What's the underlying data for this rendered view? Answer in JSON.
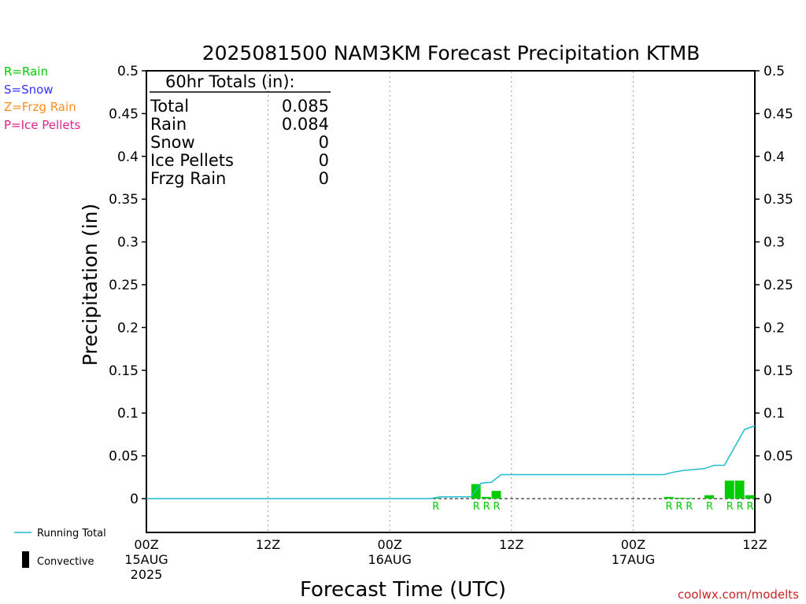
{
  "colors": {
    "rain": "#00cc00",
    "snow": "#3333ff",
    "frzg_rain": "#ff8c1a",
    "ice_pellets": "#e0228f",
    "running_total": "#22bbcc",
    "convective": "#000000",
    "credit": "#cc2222"
  },
  "legend_types": [
    {
      "label": "R=Rain",
      "color_key": "rain"
    },
    {
      "label": "S=Snow",
      "color_key": "snow"
    },
    {
      "label": "Z=Frzg Rain",
      "color_key": "frzg_rain"
    },
    {
      "label": "P=Ice Pellets",
      "color_key": "ice_pellets"
    }
  ],
  "legend_bottom": {
    "running_total": "Running Total",
    "convective": "Convective"
  },
  "totals_box": {
    "header": "60hr Totals (in):",
    "rows": [
      {
        "label": "Total",
        "value": "0.085"
      },
      {
        "label": "Rain",
        "value": "0.084"
      },
      {
        "label": "Snow",
        "value": "0"
      },
      {
        "label": "Ice Pellets",
        "value": "0"
      },
      {
        "label": "Frzg Rain",
        "value": "0"
      }
    ]
  },
  "credit": "coolwx.com/modelts",
  "chart_data": {
    "type": "bar",
    "title": "2025081500 NAM3KM Forecast Precipitation KTMB",
    "xlabel": "Forecast Time (UTC)",
    "ylabel": "Precipitation (in)",
    "xlim": [
      0,
      60
    ],
    "ylim": [
      -0.04,
      0.5
    ],
    "y_ticks": [
      0,
      0.05,
      0.1,
      0.15,
      0.2,
      0.25,
      0.3,
      0.35,
      0.4,
      0.45,
      0.5
    ],
    "y_tick_labels": [
      "0",
      "0.05",
      "0.1",
      "0.15",
      "0.2",
      "0.25",
      "0.3",
      "0.35",
      "0.4",
      "0.45",
      "0.5"
    ],
    "x_ticks": [
      {
        "hour": 0,
        "lines": [
          "00Z",
          "15AUG",
          "2025"
        ]
      },
      {
        "hour": 12,
        "lines": [
          "12Z"
        ]
      },
      {
        "hour": 24,
        "lines": [
          "00Z",
          "16AUG"
        ]
      },
      {
        "hour": 36,
        "lines": [
          "12Z"
        ]
      },
      {
        "hour": 48,
        "lines": [
          "00Z",
          "17AUG"
        ]
      },
      {
        "hour": 60,
        "lines": [
          "12Z"
        ]
      }
    ],
    "grid": "vertical dotted",
    "bar_width_hours": 1,
    "series": [
      {
        "name": "Rain",
        "kind": "bar",
        "color_key": "rain",
        "points": [
          {
            "hour": 29,
            "value": 0.0005,
            "code": "R"
          },
          {
            "hour": 33,
            "value": 0.017,
            "code": "R"
          },
          {
            "hour": 34,
            "value": 0.002,
            "code": "R"
          },
          {
            "hour": 35,
            "value": 0.009,
            "code": "R"
          },
          {
            "hour": 52,
            "value": 0.002,
            "code": "R"
          },
          {
            "hour": 53,
            "value": 0.001,
            "code": "R"
          },
          {
            "hour": 54,
            "value": 0.0005,
            "code": "R"
          },
          {
            "hour": 56,
            "value": 0.004,
            "code": "R"
          },
          {
            "hour": 58,
            "value": 0.021,
            "code": "R"
          },
          {
            "hour": 59,
            "value": 0.021,
            "code": "R"
          },
          {
            "hour": 60,
            "value": 0.004,
            "code": "R"
          }
        ]
      },
      {
        "name": "Running Total",
        "kind": "line",
        "color_key": "running_total",
        "points": [
          {
            "hour": 0,
            "value": 0
          },
          {
            "hour": 28,
            "value": 0
          },
          {
            "hour": 29,
            "value": 0.002
          },
          {
            "hour": 32,
            "value": 0.002
          },
          {
            "hour": 33,
            "value": 0.018
          },
          {
            "hour": 34,
            "value": 0.019
          },
          {
            "hour": 35,
            "value": 0.028
          },
          {
            "hour": 51,
            "value": 0.028
          },
          {
            "hour": 52,
            "value": 0.031
          },
          {
            "hour": 53,
            "value": 0.033
          },
          {
            "hour": 54,
            "value": 0.034
          },
          {
            "hour": 55,
            "value": 0.035
          },
          {
            "hour": 56,
            "value": 0.039
          },
          {
            "hour": 57,
            "value": 0.039
          },
          {
            "hour": 58,
            "value": 0.06
          },
          {
            "hour": 59,
            "value": 0.081
          },
          {
            "hour": 60,
            "value": 0.085
          }
        ]
      }
    ]
  }
}
